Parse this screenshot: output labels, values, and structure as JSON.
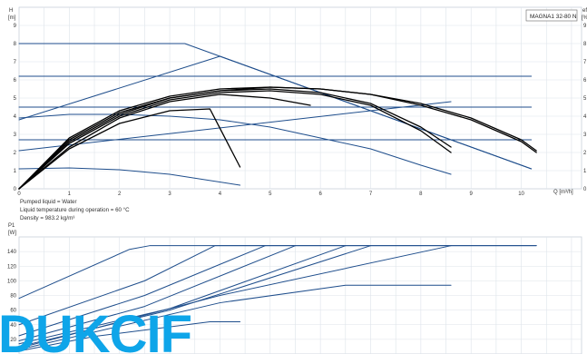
{
  "model_label": "MAGNA1 32-80 N",
  "notes": [
    "Pumped liquid = Water",
    "Liquid temperature during operation = 60 °C",
    "Density = 983.2 kg/m³"
  ],
  "watermark": "DUKCIF",
  "colors": {
    "curve": "#000000",
    "line": "#1f4e8c",
    "grid": "#dde3ea",
    "watermark": "#0ea5e9"
  },
  "chart_data": [
    {
      "type": "line",
      "name": "head",
      "ylabel_symbol": "H",
      "ylabel_unit": "[m]",
      "right_symbol": "eff",
      "right_unit": "[%]",
      "xlabel": "Q [m³/h]",
      "xlim": [
        0,
        11.2
      ],
      "ylim": [
        0,
        10
      ],
      "xticks": [
        0,
        1,
        2,
        3,
        4,
        5,
        6,
        7,
        8,
        9,
        10
      ],
      "yticks": [
        0,
        1,
        2,
        3,
        4,
        5,
        6,
        7,
        8,
        9
      ],
      "right_ticks": [
        "0",
        "1",
        "2",
        "3",
        "4",
        "5",
        "6",
        "7",
        "8",
        "9"
      ],
      "grid": true,
      "black_curves": [
        {
          "x": [
            0,
            1,
            2,
            3,
            3.8,
            4.4
          ],
          "y": [
            0,
            2.2,
            3.6,
            4.3,
            4.4,
            1.2
          ]
        },
        {
          "x": [
            0,
            1,
            2,
            3,
            4,
            5,
            5.8
          ],
          "y": [
            0,
            2.3,
            3.9,
            4.8,
            5.2,
            5.0,
            4.6
          ]
        },
        {
          "x": [
            0,
            1,
            2,
            3,
            4,
            5,
            6,
            7,
            8,
            8.6
          ],
          "y": [
            0,
            2.5,
            4.0,
            4.9,
            5.3,
            5.4,
            5.2,
            4.6,
            3.2,
            2.0
          ]
        },
        {
          "x": [
            0,
            1,
            2,
            3,
            4,
            5,
            6,
            7,
            8,
            8.6
          ],
          "y": [
            0,
            2.6,
            4.1,
            5.0,
            5.4,
            5.5,
            5.3,
            4.7,
            3.4,
            2.3
          ]
        },
        {
          "x": [
            0,
            1,
            2,
            3,
            4,
            5,
            6,
            7,
            8,
            9,
            10,
            10.3
          ],
          "y": [
            0,
            2.7,
            4.2,
            5.0,
            5.4,
            5.6,
            5.5,
            5.2,
            4.6,
            3.8,
            2.6,
            2.0
          ]
        },
        {
          "x": [
            0,
            1,
            2,
            3,
            4,
            5,
            6,
            7,
            8,
            9,
            10,
            10.3
          ],
          "y": [
            0,
            2.8,
            4.3,
            5.1,
            5.5,
            5.6,
            5.5,
            5.2,
            4.7,
            3.9,
            2.7,
            2.1
          ]
        }
      ],
      "blue_curves": [
        {
          "x": [
            0,
            3.3,
            10.2
          ],
          "y": [
            8.0,
            8.0,
            1.1
          ]
        },
        {
          "x": [
            0,
            10.2
          ],
          "y": [
            6.2,
            6.2
          ]
        },
        {
          "x": [
            0,
            10.2
          ],
          "y": [
            4.5,
            4.5
          ]
        },
        {
          "x": [
            0,
            4.0,
            10.2
          ],
          "y": [
            3.8,
            7.3,
            1.1
          ]
        },
        {
          "x": [
            0,
            10.2
          ],
          "y": [
            2.7,
            2.7
          ]
        },
        {
          "x": [
            0,
            8.6
          ],
          "y": [
            2.1,
            4.8
          ]
        },
        {
          "x": [
            0,
            1,
            2,
            3,
            4,
            5,
            6,
            7,
            8,
            8.6
          ],
          "y": [
            3.9,
            4.1,
            4.1,
            4.0,
            3.8,
            3.4,
            2.8,
            2.2,
            1.3,
            0.8
          ]
        },
        {
          "x": [
            0,
            1,
            2,
            3,
            4.4
          ],
          "y": [
            1.1,
            1.15,
            1.05,
            0.8,
            0.2
          ]
        }
      ]
    },
    {
      "type": "line",
      "name": "power",
      "ylabel_symbol": "P1",
      "ylabel_unit": "[W]",
      "xlim": [
        0,
        11.2
      ],
      "ylim": [
        0,
        160
      ],
      "yticks": [
        20,
        40,
        60,
        80,
        100,
        120,
        140
      ],
      "grid": true,
      "blue_curves": [
        {
          "x": [
            0,
            2.2,
            2.6,
            10.3
          ],
          "y": [
            76,
            143,
            148,
            148
          ]
        },
        {
          "x": [
            0,
            2.5,
            3.9,
            10.3
          ],
          "y": [
            40,
            100,
            148,
            148
          ]
        },
        {
          "x": [
            0,
            2.5,
            4.9
          ],
          "y": [
            25,
            80,
            148
          ]
        },
        {
          "x": [
            0,
            2.5,
            5.5
          ],
          "y": [
            18,
            65,
            148
          ]
        },
        {
          "x": [
            0,
            3.0,
            6.5
          ],
          "y": [
            14,
            62,
            148
          ]
        },
        {
          "x": [
            0,
            3.0,
            7.0
          ],
          "y": [
            10,
            60,
            148
          ]
        },
        {
          "x": [
            0,
            4.0,
            8.6
          ],
          "y": [
            8,
            80,
            148
          ]
        },
        {
          "x": [
            0,
            4.0,
            6.5,
            8.6
          ],
          "y": [
            6,
            70,
            94,
            94
          ]
        },
        {
          "x": [
            0,
            1.5,
            3.8,
            4.4
          ],
          "y": [
            4,
            24,
            44,
            44
          ]
        }
      ]
    }
  ]
}
